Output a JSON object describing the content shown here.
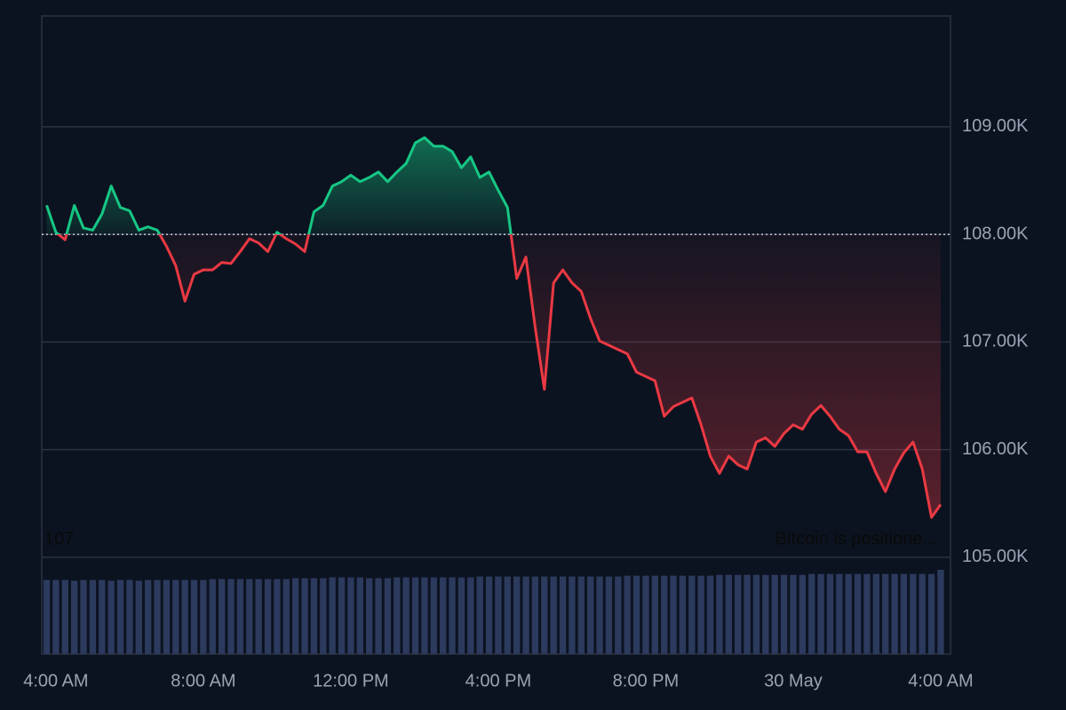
{
  "chart_data": {
    "type": "line",
    "x": [
      "29 May 03:45",
      "29 May 04:00",
      "29 May 04:15",
      "29 May 04:30",
      "29 May 04:45",
      "29 May 05:00",
      "29 May 05:15",
      "29 May 05:30",
      "29 May 05:45",
      "29 May 06:00",
      "29 May 06:15",
      "29 May 06:30",
      "29 May 06:45",
      "29 May 07:00",
      "29 May 07:15",
      "29 May 07:30",
      "29 May 07:45",
      "29 May 08:00",
      "29 May 08:15",
      "29 May 08:30",
      "29 May 08:45",
      "29 May 09:00",
      "29 May 09:15",
      "29 May 09:30",
      "29 May 09:45",
      "29 May 10:00",
      "29 May 10:15",
      "29 May 10:30",
      "29 May 10:45",
      "29 May 11:00",
      "29 May 11:15",
      "29 May 11:30",
      "29 May 11:45",
      "29 May 12:00",
      "29 May 12:15",
      "29 May 12:30",
      "29 May 12:45",
      "29 May 13:00",
      "29 May 13:15",
      "29 May 13:30",
      "29 May 13:45",
      "29 May 14:00",
      "29 May 14:15",
      "29 May 14:30",
      "29 May 14:45",
      "29 May 15:00",
      "29 May 15:15",
      "29 May 15:30",
      "29 May 15:45",
      "29 May 16:00",
      "29 May 16:15",
      "29 May 16:30",
      "29 May 16:45",
      "29 May 17:00",
      "29 May 17:15",
      "29 May 17:30",
      "29 May 17:45",
      "29 May 18:00",
      "29 May 18:15",
      "29 May 18:30",
      "29 May 18:45",
      "29 May 19:00",
      "29 May 19:15",
      "29 May 19:30",
      "29 May 19:45",
      "29 May 20:00",
      "29 May 20:15",
      "29 May 20:30",
      "29 May 20:45",
      "29 May 21:00",
      "29 May 21:15",
      "29 May 21:30",
      "29 May 21:45",
      "29 May 22:00",
      "29 May 22:15",
      "29 May 22:30",
      "29 May 22:45",
      "29 May 23:00",
      "29 May 23:15",
      "29 May 23:30",
      "29 May 23:45",
      "30 May 00:00",
      "30 May 00:15",
      "30 May 00:30",
      "30 May 00:45",
      "30 May 01:00",
      "30 May 01:15",
      "30 May 01:30",
      "30 May 01:45",
      "30 May 02:00",
      "30 May 02:15",
      "30 May 02:30",
      "30 May 02:45",
      "30 May 03:00",
      "30 May 03:15",
      "30 May 03:30",
      "30 May 03:45",
      "30 May 04:00"
    ],
    "values": [
      108270,
      108020,
      107950,
      108270,
      108060,
      108040,
      108190,
      108450,
      108250,
      108220,
      108040,
      108070,
      108040,
      107890,
      107710,
      107380,
      107630,
      107670,
      107670,
      107740,
      107730,
      107840,
      107960,
      107920,
      107840,
      108020,
      107960,
      107910,
      107840,
      108210,
      108270,
      108450,
      108490,
      108550,
      108490,
      108530,
      108580,
      108490,
      108580,
      108660,
      108850,
      108900,
      108820,
      108820,
      108770,
      108620,
      108720,
      108530,
      108580,
      108410,
      108250,
      107590,
      107790,
      107140,
      106560,
      107550,
      107670,
      107550,
      107470,
      107220,
      107010,
      106970,
      106930,
      106890,
      106720,
      106680,
      106640,
      106310,
      106400,
      106440,
      106480,
      106230,
      105940,
      105780,
      105940,
      105860,
      105820,
      106070,
      106110,
      106030,
      106150,
      106230,
      106190,
      106330,
      106410,
      106310,
      106190,
      106130,
      105980,
      105980,
      105780,
      105610,
      105820,
      105970,
      106070,
      105820,
      105370,
      105490
    ],
    "volume": [
      88,
      88,
      88,
      87,
      88,
      88,
      88,
      87,
      88,
      88,
      87,
      88,
      88,
      88,
      88,
      88,
      88,
      88,
      89,
      89,
      89,
      89,
      89,
      89,
      89,
      89,
      89,
      90,
      90,
      90,
      90,
      91,
      91,
      91,
      91,
      90,
      90,
      90,
      91,
      91,
      91,
      91,
      91,
      91,
      91,
      91,
      91,
      92,
      92,
      92,
      92,
      92,
      92,
      92,
      92,
      92,
      92,
      92,
      92,
      92,
      92,
      92,
      92,
      93,
      93,
      93,
      93,
      93,
      93,
      93,
      93,
      93,
      93,
      94,
      94,
      94,
      94,
      94,
      94,
      94,
      94,
      94,
      94,
      95,
      95,
      95,
      95,
      95,
      95,
      95,
      95,
      95,
      95,
      95,
      95,
      95,
      95,
      100
    ],
    "baseline": 108000,
    "up_color": "#16c784",
    "down_color": "#ea3943",
    "volume_color": "#2c3a5e",
    "xlim": [
      "29 May 03:37",
      "30 May 04:16"
    ],
    "xticks": [
      {
        "value": "29 May 04:00",
        "label": "4:00 AM"
      },
      {
        "value": "29 May 08:00",
        "label": "8:00 AM"
      },
      {
        "value": "29 May 12:00",
        "label": "12:00 PM"
      },
      {
        "value": "29 May 16:00",
        "label": "4:00 PM"
      },
      {
        "value": "29 May 20:00",
        "label": "8:00 PM"
      },
      {
        "value": "30 May 00:00",
        "label": "30 May"
      },
      {
        "value": "30 May 04:00",
        "label": "4:00 AM"
      }
    ],
    "ylim": [
      104100,
      110030
    ],
    "yticks": [
      {
        "value": 105000,
        "label": "105.00K"
      },
      {
        "value": 106000,
        "label": "106.00K"
      },
      {
        "value": 107000,
        "label": "107.00K"
      },
      {
        "value": 108000,
        "label": "108.00K"
      },
      {
        "value": 109000,
        "label": "109.00K"
      }
    ],
    "grid": true,
    "annotations": [
      "107",
      "Bitcoin is positione..."
    ]
  }
}
